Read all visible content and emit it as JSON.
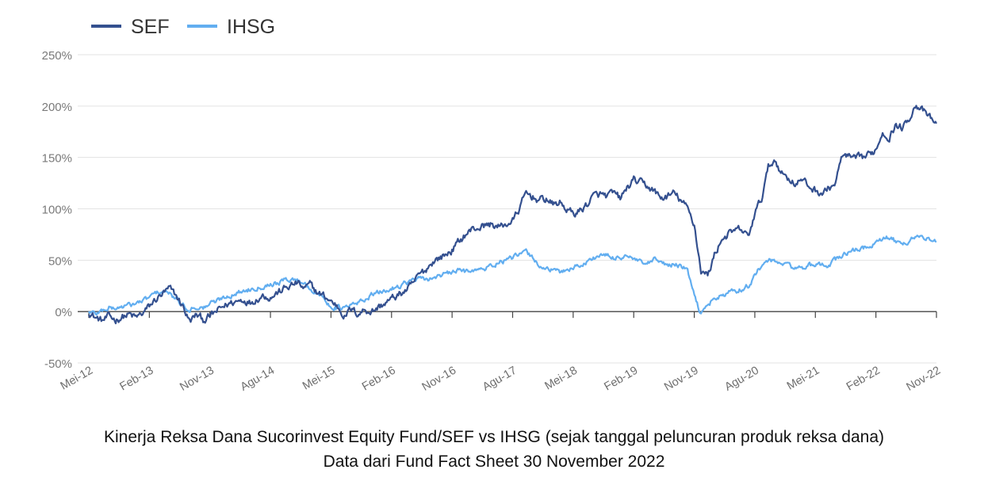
{
  "chart_data": {
    "type": "line",
    "legend": [
      {
        "name": "SEF",
        "color": "#34508f"
      },
      {
        "name": "IHSG",
        "color": "#62aef0"
      }
    ],
    "y_unit": "%",
    "ylim": [
      -50,
      250
    ],
    "y_ticks": [
      -50,
      0,
      50,
      100,
      150,
      200,
      250
    ],
    "y_tick_labels": [
      "-50%",
      "0%",
      "50%",
      "100%",
      "150%",
      "200%",
      "250%"
    ],
    "x_tick_labels": [
      "Mei-12",
      "Feb-13",
      "Nov-13",
      "Agu-14",
      "Mei-15",
      "Feb-16",
      "Nov-16",
      "Agu-17",
      "Mei-18",
      "Feb-19",
      "Nov-19",
      "Agu-20",
      "Mei-21",
      "Feb-22",
      "Nov-22"
    ],
    "x_months_range": [
      0,
      126
    ],
    "series": [
      {
        "name": "SEF",
        "color": "#34508f",
        "points": [
          [
            0,
            0
          ],
          [
            1,
            -6
          ],
          [
            2,
            -9
          ],
          [
            3,
            -5
          ],
          [
            4,
            -8
          ],
          [
            5,
            -5
          ],
          [
            6,
            -3
          ],
          [
            7,
            -6
          ],
          [
            8,
            -2
          ],
          [
            9,
            5
          ],
          [
            10,
            12
          ],
          [
            11,
            17
          ],
          [
            12,
            22
          ],
          [
            13,
            15
          ],
          [
            14,
            5
          ],
          [
            15,
            -10
          ],
          [
            16,
            -3
          ],
          [
            17,
            -8
          ],
          [
            18,
            -5
          ],
          [
            19,
            0
          ],
          [
            20,
            5
          ],
          [
            21,
            8
          ],
          [
            22,
            10
          ],
          [
            23,
            12
          ],
          [
            24,
            9
          ],
          [
            25,
            13
          ],
          [
            26,
            16
          ],
          [
            27,
            14
          ],
          [
            28,
            18
          ],
          [
            29,
            22
          ],
          [
            30,
            25
          ],
          [
            31,
            28
          ],
          [
            32,
            22
          ],
          [
            33,
            26
          ],
          [
            34,
            18
          ],
          [
            35,
            15
          ],
          [
            36,
            10
          ],
          [
            37,
            5
          ],
          [
            38,
            -4
          ],
          [
            39,
            2
          ],
          [
            40,
            -2
          ],
          [
            41,
            2
          ],
          [
            42,
            0
          ],
          [
            43,
            4
          ],
          [
            44,
            8
          ],
          [
            45,
            12
          ],
          [
            46,
            16
          ],
          [
            47,
            20
          ],
          [
            48,
            25
          ],
          [
            49,
            35
          ],
          [
            50,
            40
          ],
          [
            51,
            48
          ],
          [
            52,
            52
          ],
          [
            53,
            55
          ],
          [
            54,
            60
          ],
          [
            55,
            68
          ],
          [
            56,
            75
          ],
          [
            57,
            80
          ],
          [
            58,
            82
          ],
          [
            59,
            84
          ],
          [
            60,
            85
          ],
          [
            61,
            82
          ],
          [
            62,
            85
          ],
          [
            63,
            88
          ],
          [
            64,
            100
          ],
          [
            65,
            115
          ],
          [
            66,
            112
          ],
          [
            67,
            108
          ],
          [
            68,
            110
          ],
          [
            69,
            104
          ],
          [
            70,
            106
          ],
          [
            71,
            100
          ],
          [
            72,
            95
          ],
          [
            73,
            98
          ],
          [
            74,
            104
          ],
          [
            75,
            112
          ],
          [
            76,
            114
          ],
          [
            77,
            112
          ],
          [
            78,
            115
          ],
          [
            79,
            110
          ],
          [
            80,
            120
          ],
          [
            81,
            128
          ],
          [
            82,
            125
          ],
          [
            83,
            122
          ],
          [
            84,
            118
          ],
          [
            85,
            110
          ],
          [
            86,
            112
          ],
          [
            87,
            115
          ],
          [
            88,
            108
          ],
          [
            89,
            100
          ],
          [
            90,
            85
          ],
          [
            91,
            40
          ],
          [
            92,
            35
          ],
          [
            93,
            55
          ],
          [
            94,
            70
          ],
          [
            95,
            75
          ],
          [
            96,
            78
          ],
          [
            97,
            80
          ],
          [
            98,
            72
          ],
          [
            99,
            95
          ],
          [
            100,
            110
          ],
          [
            101,
            140
          ],
          [
            102,
            148
          ],
          [
            103,
            135
          ],
          [
            104,
            130
          ],
          [
            105,
            125
          ],
          [
            106,
            128
          ],
          [
            107,
            122
          ],
          [
            108,
            118
          ],
          [
            109,
            115
          ],
          [
            110,
            120
          ],
          [
            111,
            125
          ],
          [
            112,
            152
          ],
          [
            113,
            150
          ],
          [
            114,
            148
          ],
          [
            115,
            150
          ],
          [
            116,
            152
          ],
          [
            117,
            158
          ],
          [
            118,
            175
          ],
          [
            119,
            170
          ],
          [
            120,
            182
          ],
          [
            121,
            178
          ],
          [
            122,
            190
          ],
          [
            123,
            202
          ],
          [
            124,
            195
          ],
          [
            125,
            188
          ],
          [
            126,
            183
          ]
        ]
      },
      {
        "name": "IHSG",
        "color": "#62aef0",
        "points": [
          [
            0,
            0
          ],
          [
            1,
            -2
          ],
          [
            2,
            1
          ],
          [
            3,
            4
          ],
          [
            4,
            3
          ],
          [
            5,
            5
          ],
          [
            6,
            6
          ],
          [
            7,
            8
          ],
          [
            8,
            10
          ],
          [
            9,
            14
          ],
          [
            10,
            18
          ],
          [
            11,
            20
          ],
          [
            12,
            17
          ],
          [
            13,
            12
          ],
          [
            14,
            6
          ],
          [
            15,
            2
          ],
          [
            16,
            5
          ],
          [
            17,
            3
          ],
          [
            18,
            8
          ],
          [
            19,
            10
          ],
          [
            20,
            14
          ],
          [
            21,
            16
          ],
          [
            22,
            18
          ],
          [
            23,
            20
          ],
          [
            24,
            22
          ],
          [
            25,
            24
          ],
          [
            26,
            25
          ],
          [
            27,
            27
          ],
          [
            28,
            28
          ],
          [
            29,
            30
          ],
          [
            30,
            32
          ],
          [
            31,
            30
          ],
          [
            32,
            28
          ],
          [
            33,
            22
          ],
          [
            34,
            18
          ],
          [
            35,
            12
          ],
          [
            36,
            5
          ],
          [
            37,
            4
          ],
          [
            38,
            3
          ],
          [
            39,
            6
          ],
          [
            40,
            8
          ],
          [
            41,
            12
          ],
          [
            42,
            16
          ],
          [
            43,
            18
          ],
          [
            44,
            20
          ],
          [
            45,
            22
          ],
          [
            46,
            25
          ],
          [
            47,
            28
          ],
          [
            48,
            30
          ],
          [
            49,
            32
          ],
          [
            50,
            30
          ],
          [
            51,
            33
          ],
          [
            52,
            35
          ],
          [
            53,
            36
          ],
          [
            54,
            38
          ],
          [
            55,
            40
          ],
          [
            56,
            39
          ],
          [
            57,
            42
          ],
          [
            58,
            40
          ],
          [
            59,
            42
          ],
          [
            60,
            45
          ],
          [
            61,
            48
          ],
          [
            62,
            50
          ],
          [
            63,
            52
          ],
          [
            64,
            55
          ],
          [
            65,
            58
          ],
          [
            66,
            52
          ],
          [
            67,
            45
          ],
          [
            68,
            42
          ],
          [
            69,
            40
          ],
          [
            70,
            38
          ],
          [
            71,
            41
          ],
          [
            72,
            43
          ],
          [
            73,
            45
          ],
          [
            74,
            48
          ],
          [
            75,
            52
          ],
          [
            76,
            55
          ],
          [
            77,
            54
          ],
          [
            78,
            52
          ],
          [
            79,
            53
          ],
          [
            80,
            55
          ],
          [
            81,
            50
          ],
          [
            82,
            48
          ],
          [
            83,
            45
          ],
          [
            84,
            50
          ],
          [
            85,
            48
          ],
          [
            86,
            45
          ],
          [
            87,
            46
          ],
          [
            88,
            44
          ],
          [
            89,
            40
          ],
          [
            90,
            15
          ],
          [
            91,
            -3
          ],
          [
            92,
            8
          ],
          [
            93,
            12
          ],
          [
            94,
            15
          ],
          [
            95,
            18
          ],
          [
            96,
            20
          ],
          [
            97,
            22
          ],
          [
            98,
            25
          ],
          [
            99,
            35
          ],
          [
            100,
            45
          ],
          [
            101,
            50
          ],
          [
            102,
            48
          ],
          [
            103,
            47
          ],
          [
            104,
            45
          ],
          [
            105,
            42
          ],
          [
            106,
            43
          ],
          [
            107,
            45
          ],
          [
            108,
            44
          ],
          [
            109,
            45
          ],
          [
            110,
            46
          ],
          [
            111,
            50
          ],
          [
            112,
            55
          ],
          [
            113,
            58
          ],
          [
            114,
            60
          ],
          [
            115,
            62
          ],
          [
            116,
            63
          ],
          [
            117,
            66
          ],
          [
            118,
            70
          ],
          [
            119,
            72
          ],
          [
            120,
            68
          ],
          [
            121,
            64
          ],
          [
            122,
            70
          ],
          [
            123,
            74
          ],
          [
            124,
            72
          ],
          [
            125,
            70
          ],
          [
            126,
            68
          ]
        ]
      }
    ]
  },
  "caption": {
    "line1": "Kinerja Reksa Dana Sucorinvest Equity Fund/SEF vs IHSG (sejak tanggal peluncuran produk reksa dana)",
    "line2": "Data dari Fund Fact Sheet 30 November 2022"
  }
}
